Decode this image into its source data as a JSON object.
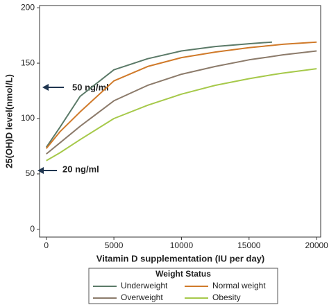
{
  "chart_data": {
    "type": "line",
    "x_label": "Vitamin D supplementation (IU per day)",
    "y_label": "25(OH)D level(nmol/L)",
    "annotations": [
      "50 ng/ml",
      "20 ng/ml"
    ],
    "legend_title": "Weight Status",
    "x": [
      0,
      1000,
      2500,
      5000,
      7500,
      10000,
      12500,
      15000,
      16700,
      17500,
      20000
    ],
    "series": [
      {
        "name": "Underweight",
        "color": "#5b7a68",
        "values": [
          74,
          92,
          120,
          144,
          154,
          161,
          165,
          167.5,
          169,
          null,
          null
        ]
      },
      {
        "name": "Normal weight",
        "color": "#d07a2a",
        "values": [
          73,
          88,
          106,
          134,
          147,
          155,
          160,
          164,
          166,
          167,
          169
        ]
      },
      {
        "name": "Overweight",
        "color": "#8c7b6b",
        "values": [
          68,
          78,
          93,
          116,
          130,
          140,
          147,
          153,
          156,
          157.5,
          161
        ]
      },
      {
        "name": "Obesity",
        "color": "#a6c94a",
        "values": [
          62,
          69,
          81,
          100,
          112,
          122,
          130,
          136,
          139.5,
          141,
          145
        ]
      }
    ],
    "xlim": [
      -500,
      20300
    ],
    "ylim": [
      -7,
      202
    ],
    "xticks": [
      0,
      5000,
      10000,
      15000,
      20000
    ],
    "yticks": [
      0,
      50,
      100,
      150,
      200
    ]
  }
}
